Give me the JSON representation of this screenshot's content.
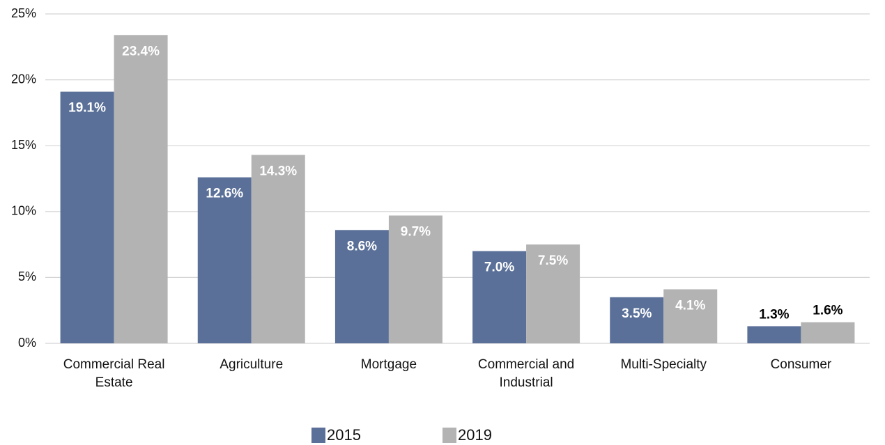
{
  "chart_data": {
    "type": "bar",
    "categories": [
      "Commercial Real Estate",
      "Agriculture",
      "Mortgage",
      "Commercial and Industrial",
      "Multi-Specialty",
      "Consumer"
    ],
    "series": [
      {
        "name": "2015",
        "color": "#5a7098",
        "values": [
          19.1,
          12.6,
          8.6,
          7.0,
          3.5,
          1.3
        ],
        "value_labels": [
          "19.1%",
          "12.6%",
          "8.6%",
          "7.0%",
          "3.5%",
          "1.3%"
        ]
      },
      {
        "name": "2019",
        "color": "#b3b3b3",
        "values": [
          23.4,
          14.3,
          9.7,
          7.5,
          4.1,
          1.6
        ],
        "value_labels": [
          "23.4%",
          "14.3%",
          "9.7%",
          "7.5%",
          "4.1%",
          "1.6%"
        ]
      }
    ],
    "ylim": [
      0,
      25
    ],
    "yticks": [
      {
        "value": 0,
        "label": "0%"
      },
      {
        "value": 5,
        "label": "5%"
      },
      {
        "value": 10,
        "label": "10%"
      },
      {
        "value": 15,
        "label": "15%"
      },
      {
        "value": 20,
        "label": "20%"
      },
      {
        "value": 25,
        "label": "25%"
      }
    ],
    "grid": true,
    "legend": "bottom"
  }
}
